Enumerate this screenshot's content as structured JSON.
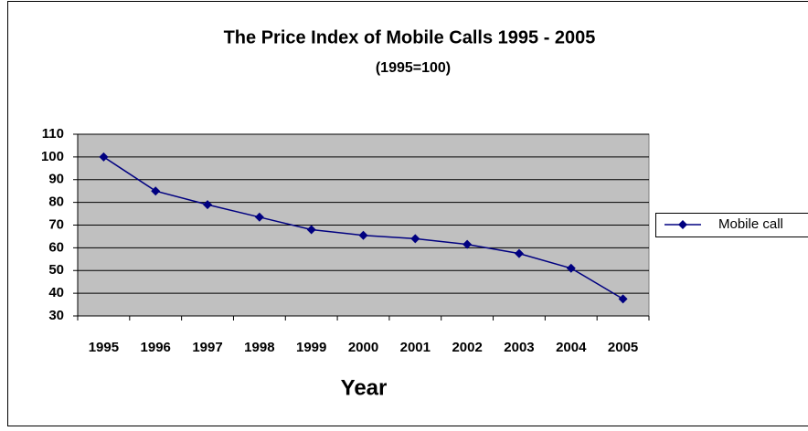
{
  "chart_data": {
    "type": "line",
    "title": "The Price Index of Mobile Calls 1995 - 2005",
    "subtitle": "(1995=100)",
    "x_label": "Year",
    "categories": [
      "1995",
      "1996",
      "1997",
      "1998",
      "1999",
      "2000",
      "2001",
      "2002",
      "2003",
      "2004",
      "2005"
    ],
    "series": [
      {
        "name": "Mobile call",
        "color": "#000080",
        "values": [
          100,
          85,
          79,
          73.5,
          68,
          65.5,
          64,
          61.5,
          57.5,
          51,
          37.5
        ]
      }
    ],
    "ylim": [
      30,
      110
    ],
    "yticks": [
      30,
      40,
      50,
      60,
      70,
      80,
      90,
      100,
      110
    ],
    "grid": true,
    "legend": "right"
  }
}
